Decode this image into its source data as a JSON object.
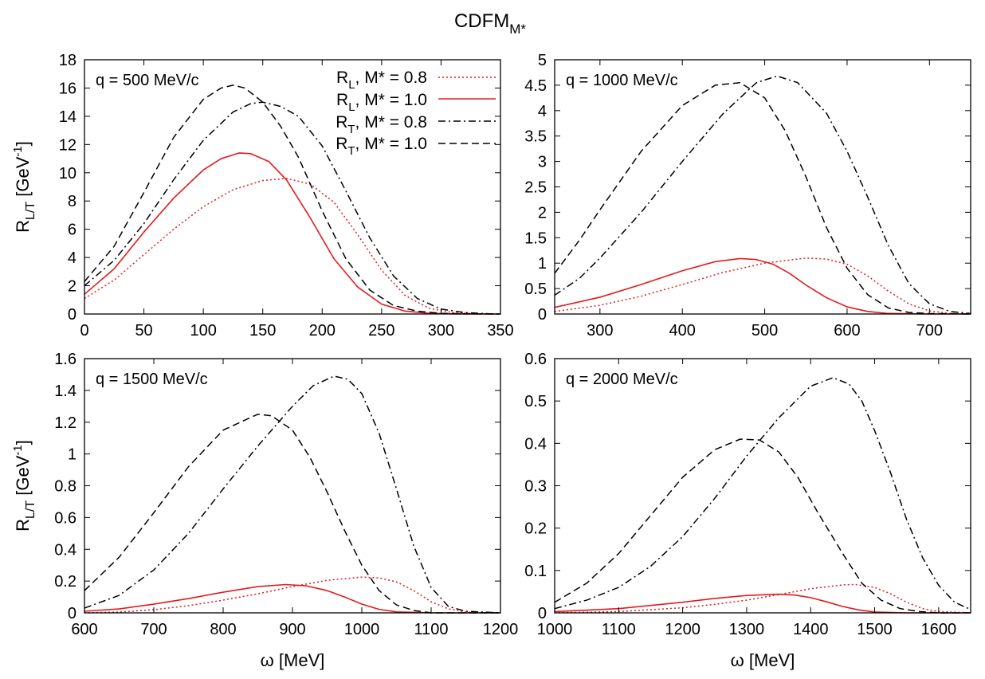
{
  "figure": {
    "title": "CDFM",
    "title_sub": "M*"
  },
  "colors": {
    "red": "#e41a1c",
    "black": "#000000"
  },
  "legend": {
    "items": [
      {
        "r": "R",
        "rsub": "L",
        "text": ", M* = 0.8",
        "color": "#e41a1c",
        "dash": "dotted"
      },
      {
        "r": "R",
        "rsub": "L",
        "text": ", M* = 1.0",
        "color": "#e41a1c",
        "dash": "solid"
      },
      {
        "r": "R",
        "rsub": "T",
        "text": ", M* = 0.8",
        "color": "#000000",
        "dash": "dashdot"
      },
      {
        "r": "R",
        "rsub": "T",
        "text": ", M* = 1.0",
        "color": "#000000",
        "dash": "dashed"
      }
    ]
  },
  "chart_data": [
    {
      "type": "line",
      "annotation": "q = 500 MeV/c",
      "xlim": [
        0,
        350
      ],
      "ylim": [
        0,
        18
      ],
      "xticks": [
        0,
        50,
        100,
        150,
        200,
        250,
        300,
        350
      ],
      "yticks": [
        0,
        2,
        4,
        6,
        8,
        10,
        12,
        14,
        16,
        18
      ],
      "ylabel": "R",
      "ylabel_sub": "L/T",
      "ylabel_unit": " [GeV",
      "ylabel_sup": "-1",
      "ylabel_end": "]",
      "xlabel": "",
      "series": [
        {
          "name": "R_L, M* = 0.8",
          "x": [
            0,
            25,
            50,
            75,
            100,
            125,
            150,
            170,
            190,
            210,
            230,
            250,
            270,
            290,
            310,
            330,
            350
          ],
          "y": [
            1.1,
            2.4,
            4.2,
            6.0,
            7.6,
            8.8,
            9.45,
            9.6,
            9.2,
            7.9,
            5.6,
            3.1,
            1.3,
            0.4,
            0.1,
            0.02,
            0
          ]
        },
        {
          "name": "R_L, M* = 1.0",
          "x": [
            0,
            25,
            50,
            75,
            100,
            115,
            130,
            140,
            155,
            170,
            190,
            210,
            230,
            250,
            270,
            290,
            310,
            330,
            350
          ],
          "y": [
            1.4,
            3.2,
            5.8,
            8.2,
            10.2,
            11.0,
            11.4,
            11.35,
            10.8,
            9.5,
            6.8,
            3.9,
            1.9,
            0.7,
            0.2,
            0.05,
            0.01,
            0,
            0
          ]
        },
        {
          "name": "R_T, M* = 0.8",
          "x": [
            0,
            25,
            50,
            75,
            100,
            125,
            140,
            150,
            165,
            180,
            200,
            220,
            240,
            260,
            280,
            300,
            320,
            340,
            350
          ],
          "y": [
            2.0,
            3.8,
            6.4,
            9.5,
            12.3,
            14.3,
            14.9,
            15.0,
            14.7,
            14.0,
            11.9,
            8.7,
            5.4,
            2.7,
            1.1,
            0.35,
            0.1,
            0.02,
            0
          ]
        },
        {
          "name": "R_T, M* = 1.0",
          "x": [
            0,
            25,
            50,
            75,
            100,
            115,
            125,
            135,
            150,
            165,
            180,
            200,
            220,
            240,
            260,
            280,
            300,
            320,
            350
          ],
          "y": [
            2.3,
            4.8,
            8.6,
            12.5,
            15.2,
            16.0,
            16.2,
            16.0,
            15.0,
            13.3,
            11.1,
            7.3,
            3.9,
            1.7,
            0.6,
            0.2,
            0.05,
            0.01,
            0
          ]
        }
      ]
    },
    {
      "type": "line",
      "annotation": "q = 1000 MeV/c",
      "xlim": [
        245,
        750
      ],
      "ylim": [
        0,
        5
      ],
      "xticks": [
        300,
        400,
        500,
        600,
        700
      ],
      "yticks": [
        0,
        0.5,
        1,
        1.5,
        2,
        2.5,
        3,
        3.5,
        4,
        4.5,
        5
      ],
      "ylabel": "",
      "xlabel": "",
      "series": [
        {
          "name": "R_L, M* = 0.8",
          "x": [
            245,
            300,
            350,
            400,
            450,
            500,
            550,
            575,
            600,
            625,
            650,
            675,
            700,
            725,
            750
          ],
          "y": [
            0.05,
            0.17,
            0.35,
            0.58,
            0.82,
            1.0,
            1.1,
            1.08,
            0.98,
            0.75,
            0.45,
            0.2,
            0.06,
            0.01,
            0
          ]
        },
        {
          "name": "R_L, M* = 1.0",
          "x": [
            245,
            300,
            350,
            400,
            440,
            470,
            490,
            510,
            530,
            550,
            575,
            600,
            625,
            650,
            700,
            750
          ],
          "y": [
            0.13,
            0.33,
            0.58,
            0.85,
            1.03,
            1.09,
            1.07,
            0.98,
            0.8,
            0.57,
            0.32,
            0.14,
            0.05,
            0.01,
            0,
            0
          ]
        },
        {
          "name": "R_T, M* = 0.8",
          "x": [
            245,
            275,
            300,
            350,
            400,
            450,
            490,
            515,
            540,
            575,
            600,
            625,
            650,
            675,
            700,
            725,
            750
          ],
          "y": [
            0.37,
            0.7,
            1.1,
            2.0,
            3.0,
            3.95,
            4.55,
            4.68,
            4.55,
            3.95,
            3.2,
            2.3,
            1.35,
            0.6,
            0.2,
            0.05,
            0.01
          ]
        },
        {
          "name": "R_T, M* = 1.0",
          "x": [
            245,
            275,
            300,
            350,
            400,
            440,
            470,
            500,
            525,
            550,
            575,
            600,
            625,
            650,
            675,
            700,
            750
          ],
          "y": [
            0.8,
            1.45,
            2.05,
            3.2,
            4.1,
            4.5,
            4.55,
            4.25,
            3.6,
            2.7,
            1.7,
            0.9,
            0.38,
            0.12,
            0.03,
            0.01,
            0
          ]
        }
      ]
    },
    {
      "type": "line",
      "annotation": "q = 1500 MeV/c",
      "xlim": [
        600,
        1200
      ],
      "ylim": [
        0,
        1.6
      ],
      "xticks": [
        600,
        700,
        800,
        900,
        1000,
        1100,
        1200
      ],
      "yticks": [
        0,
        0.2,
        0.4,
        0.6,
        0.8,
        1,
        1.2,
        1.4,
        1.6
      ],
      "ylabel": "R",
      "ylabel_sub": "L/T",
      "ylabel_unit": " [GeV",
      "ylabel_sup": "-1",
      "ylabel_end": "]",
      "xlabel": "ω [MeV]",
      "series": [
        {
          "name": "R_L, M* = 0.8",
          "x": [
            600,
            650,
            700,
            750,
            800,
            850,
            900,
            950,
            1000,
            1025,
            1050,
            1075,
            1100,
            1125,
            1150,
            1200
          ],
          "y": [
            0,
            0.005,
            0.02,
            0.045,
            0.08,
            0.12,
            0.165,
            0.205,
            0.225,
            0.22,
            0.195,
            0.14,
            0.07,
            0.025,
            0.005,
            0
          ]
        },
        {
          "name": "R_L, M* = 1.0",
          "x": [
            600,
            650,
            700,
            750,
            800,
            850,
            890,
            920,
            950,
            975,
            1000,
            1025,
            1050,
            1100,
            1150,
            1200
          ],
          "y": [
            0.01,
            0.025,
            0.055,
            0.09,
            0.13,
            0.165,
            0.178,
            0.17,
            0.14,
            0.1,
            0.055,
            0.022,
            0.006,
            0,
            0,
            0
          ]
        },
        {
          "name": "R_T, M* = 0.8",
          "x": [
            600,
            650,
            700,
            750,
            800,
            850,
            900,
            930,
            960,
            980,
            1000,
            1025,
            1050,
            1075,
            1100,
            1125,
            1150,
            1200
          ],
          "y": [
            0.03,
            0.11,
            0.27,
            0.5,
            0.78,
            1.05,
            1.3,
            1.43,
            1.49,
            1.47,
            1.38,
            1.13,
            0.78,
            0.42,
            0.16,
            0.04,
            0.01,
            0
          ]
        },
        {
          "name": "R_T, M* = 1.0",
          "x": [
            600,
            650,
            700,
            750,
            800,
            850,
            870,
            900,
            925,
            950,
            975,
            1000,
            1025,
            1050,
            1075,
            1100,
            1150,
            1200
          ],
          "y": [
            0.14,
            0.35,
            0.63,
            0.92,
            1.15,
            1.25,
            1.24,
            1.15,
            0.98,
            0.76,
            0.52,
            0.3,
            0.14,
            0.05,
            0.015,
            0,
            0,
            0
          ]
        }
      ]
    },
    {
      "type": "line",
      "annotation": "q = 2000 MeV/c",
      "xlim": [
        1000,
        1650
      ],
      "ylim": [
        0,
        0.6
      ],
      "xticks": [
        1000,
        1100,
        1200,
        1300,
        1400,
        1500,
        1600
      ],
      "yticks": [
        0,
        0.1,
        0.2,
        0.3,
        0.4,
        0.5,
        0.6
      ],
      "ylabel": "",
      "xlabel": "ω [MeV]",
      "series": [
        {
          "name": "R_L, M* = 0.8",
          "x": [
            1000,
            1100,
            1200,
            1250,
            1300,
            1350,
            1400,
            1450,
            1470,
            1500,
            1525,
            1550,
            1575,
            1600,
            1650
          ],
          "y": [
            0,
            0.003,
            0.012,
            0.02,
            0.03,
            0.043,
            0.057,
            0.066,
            0.067,
            0.06,
            0.045,
            0.025,
            0.01,
            0.003,
            0
          ]
        },
        {
          "name": "R_L, M* = 1.0",
          "x": [
            1000,
            1100,
            1200,
            1250,
            1300,
            1350,
            1375,
            1400,
            1425,
            1450,
            1475,
            1500,
            1550,
            1600,
            1650
          ],
          "y": [
            0.003,
            0.01,
            0.025,
            0.034,
            0.041,
            0.044,
            0.042,
            0.036,
            0.026,
            0.015,
            0.007,
            0.002,
            0,
            0,
            0
          ]
        },
        {
          "name": "R_T, M* = 0.8",
          "x": [
            1000,
            1050,
            1100,
            1150,
            1200,
            1250,
            1300,
            1350,
            1400,
            1435,
            1460,
            1480,
            1500,
            1525,
            1550,
            1575,
            1600,
            1625,
            1650
          ],
          "y": [
            0.01,
            0.03,
            0.06,
            0.11,
            0.18,
            0.27,
            0.37,
            0.46,
            0.535,
            0.555,
            0.54,
            0.5,
            0.43,
            0.33,
            0.22,
            0.13,
            0.065,
            0.025,
            0.008
          ]
        },
        {
          "name": "R_T, M* = 1.0",
          "x": [
            1000,
            1050,
            1100,
            1150,
            1200,
            1250,
            1290,
            1320,
            1350,
            1380,
            1410,
            1450,
            1480,
            1510,
            1540,
            1570,
            1600,
            1650
          ],
          "y": [
            0.025,
            0.07,
            0.14,
            0.23,
            0.32,
            0.385,
            0.41,
            0.408,
            0.38,
            0.32,
            0.24,
            0.14,
            0.07,
            0.03,
            0.01,
            0.003,
            0,
            0
          ]
        }
      ]
    }
  ]
}
